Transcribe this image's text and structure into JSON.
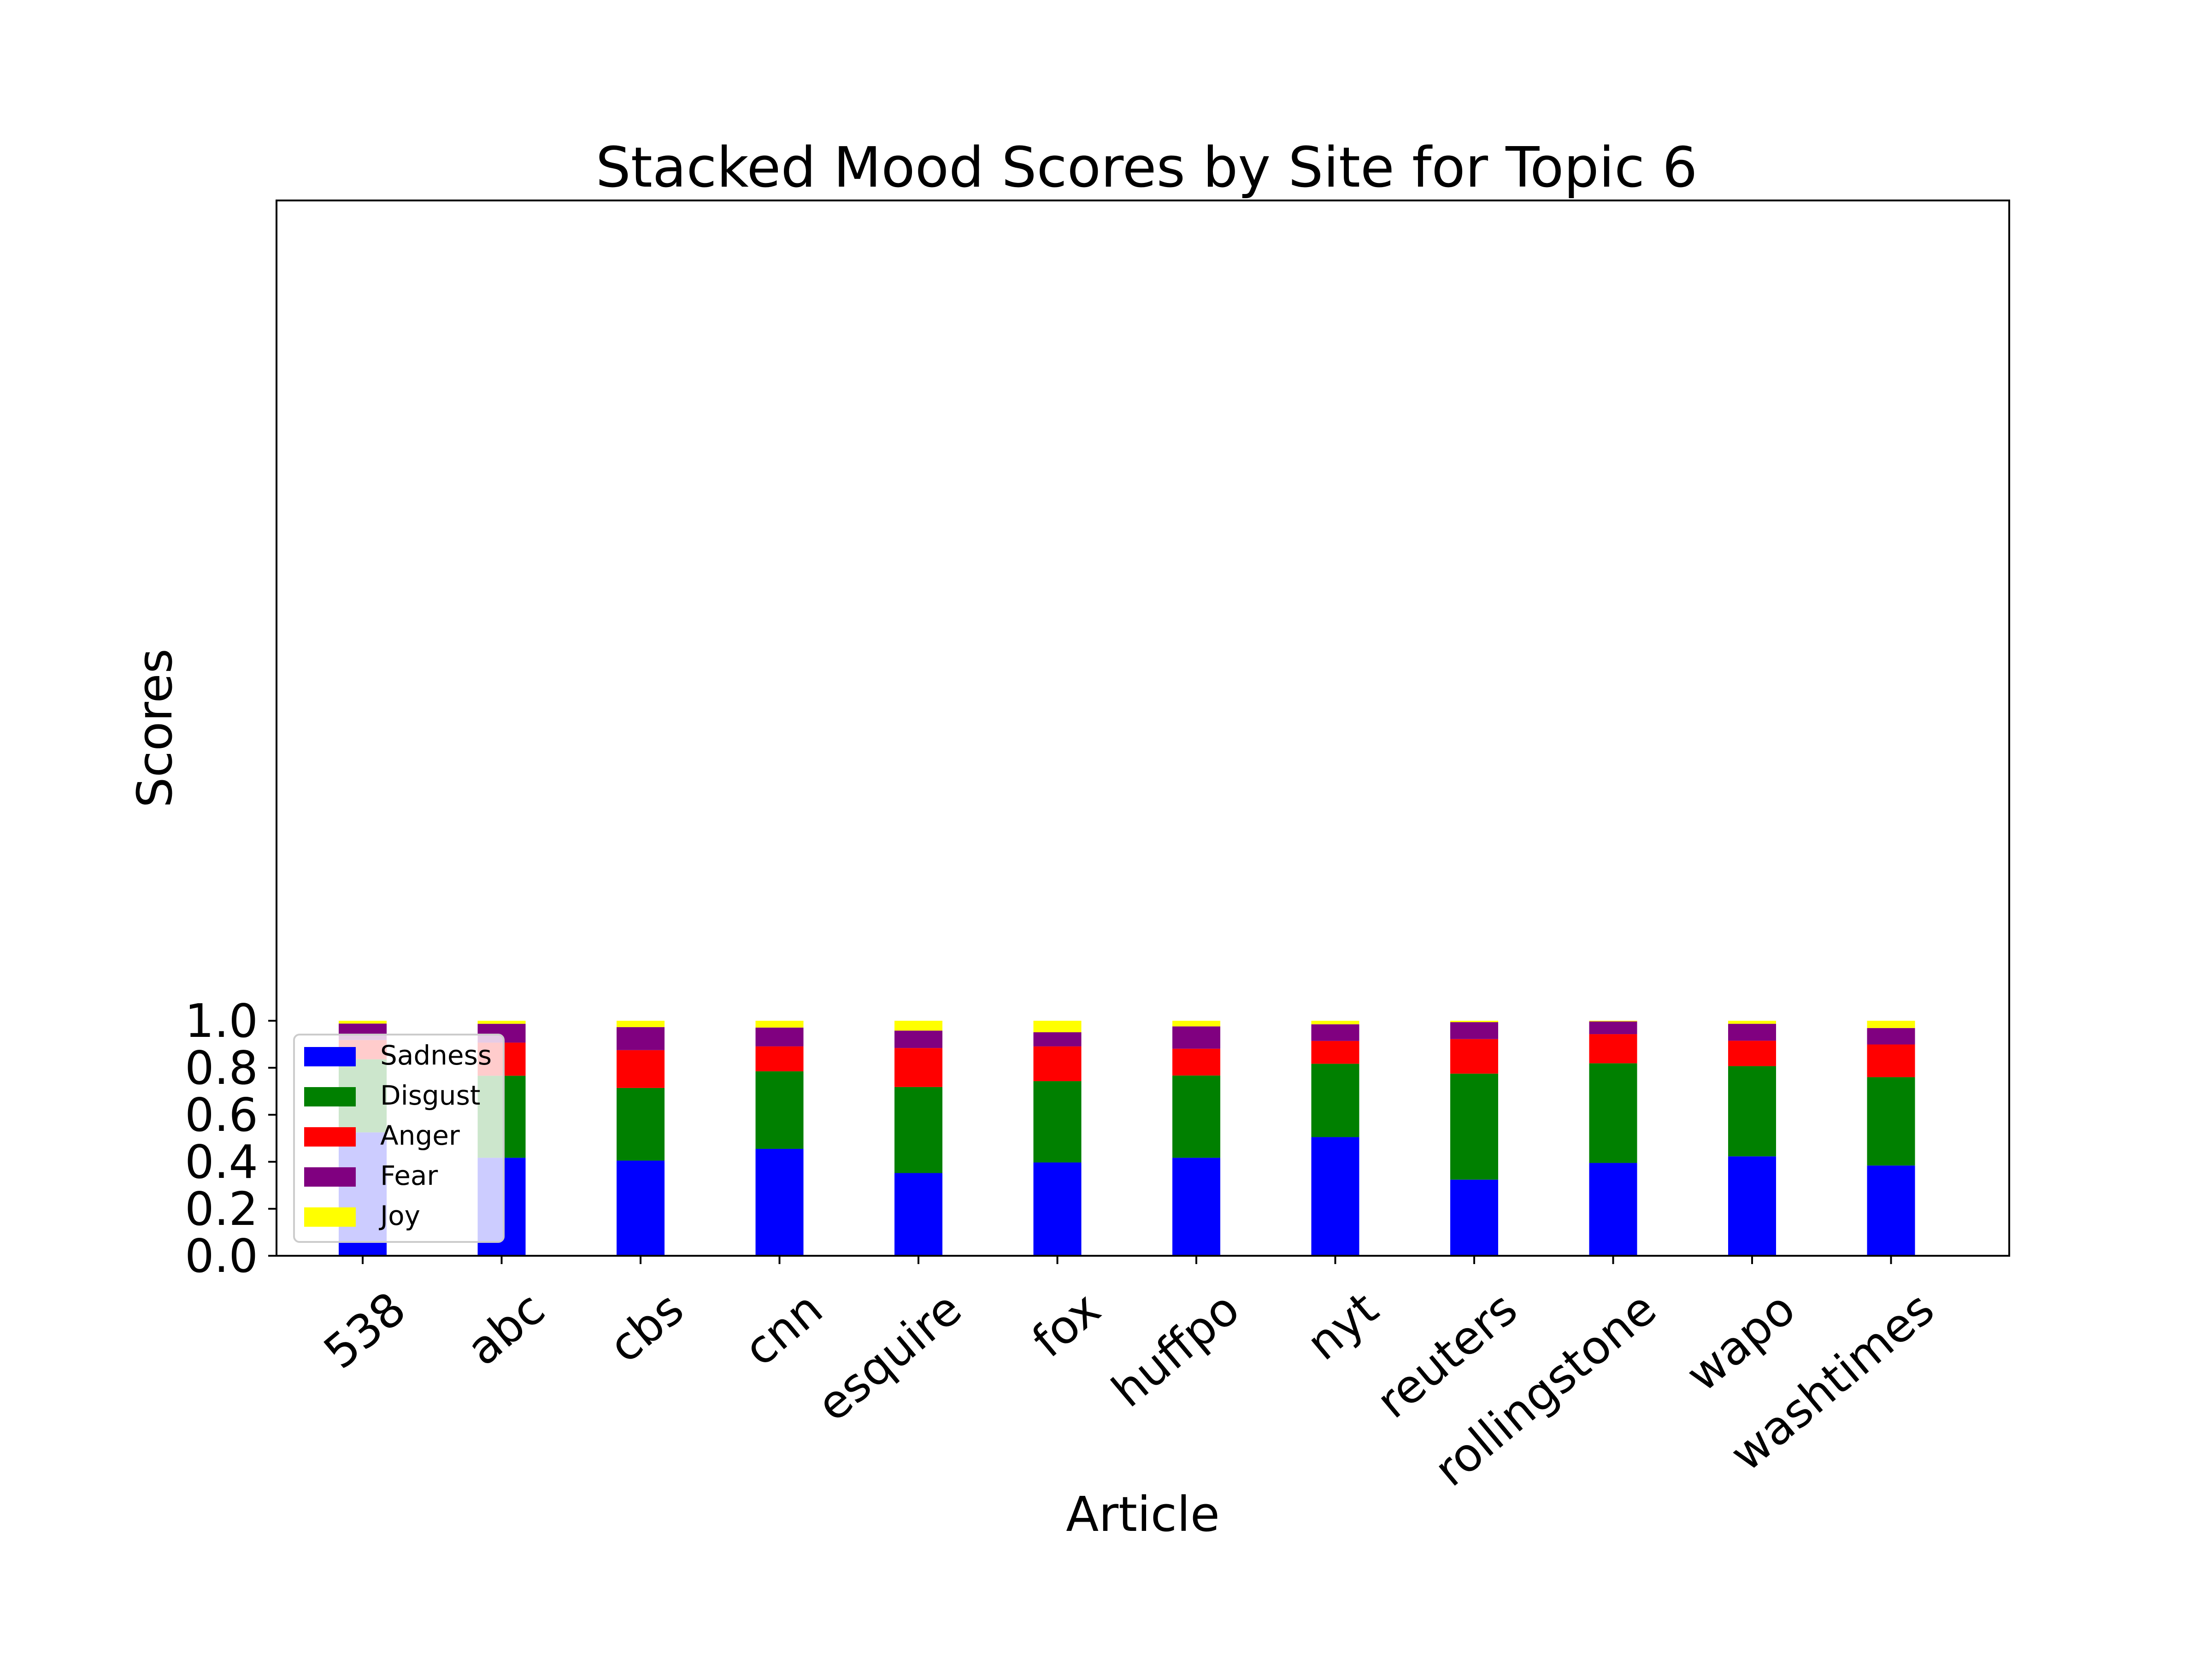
{
  "chart_data": {
    "type": "bar",
    "stacked": true,
    "title": "Stacked Mood Scores by Site for Topic 6",
    "xlabel": "Article",
    "ylabel": "Scores",
    "ylim": [
      0,
      1.0
    ],
    "yticks": [
      "0.0",
      "0.2",
      "0.4",
      "0.6",
      "0.8",
      "1.0"
    ],
    "categories": [
      "538",
      "abc",
      "cbs",
      "cnn",
      "esquire",
      "fox",
      "huffpo",
      "nyt",
      "reuters",
      "rollingstone",
      "wapo",
      "washtimes"
    ],
    "series": [
      {
        "name": "Sadness",
        "color": "#0000ff",
        "values": [
          0.525,
          0.417,
          0.405,
          0.455,
          0.352,
          0.397,
          0.417,
          0.505,
          0.324,
          0.395,
          0.423,
          0.384
        ]
      },
      {
        "name": "Disgust",
        "color": "#008000",
        "values": [
          0.311,
          0.349,
          0.309,
          0.33,
          0.366,
          0.346,
          0.35,
          0.312,
          0.451,
          0.424,
          0.384,
          0.376
        ]
      },
      {
        "name": "Anger",
        "color": "#ff0000",
        "values": [
          0.082,
          0.141,
          0.161,
          0.106,
          0.166,
          0.148,
          0.114,
          0.097,
          0.147,
          0.124,
          0.108,
          0.139
        ]
      },
      {
        "name": "Fear",
        "color": "#800080",
        "values": [
          0.07,
          0.08,
          0.098,
          0.08,
          0.074,
          0.06,
          0.095,
          0.071,
          0.072,
          0.054,
          0.072,
          0.07
        ]
      },
      {
        "name": "Joy",
        "color": "#ffff00",
        "values": [
          0.012,
          0.013,
          0.027,
          0.029,
          0.042,
          0.049,
          0.024,
          0.015,
          0.006,
          0.003,
          0.013,
          0.031
        ]
      }
    ],
    "legend_position": "lower-left",
    "grid": false
  }
}
